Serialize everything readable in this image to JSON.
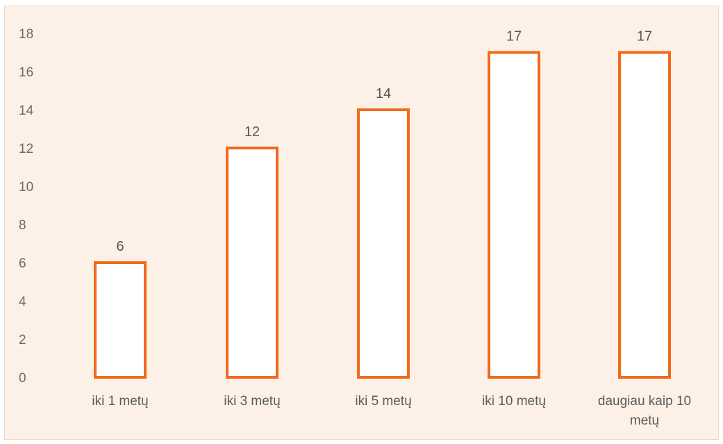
{
  "colors": {
    "background": "#fdf1e7",
    "bar_stroke": "#f26a1b",
    "bar_fill": "#ffffff",
    "text": "#5a5a5a"
  },
  "chart_data": {
    "type": "bar",
    "title": "",
    "xlabel": "",
    "ylabel": "",
    "categories": [
      [
        "iki 1 metų"
      ],
      [
        "iki 3 metų"
      ],
      [
        "iki 5 metų"
      ],
      [
        "iki 10 metų"
      ],
      [
        "daugiau kaip 10",
        "metų"
      ]
    ],
    "values": [
      6,
      12,
      14,
      17,
      17
    ],
    "data_labels": [
      "6",
      "12",
      "14",
      "17",
      "17"
    ],
    "ylim": [
      0,
      18
    ],
    "yticks": [
      0,
      2,
      4,
      6,
      8,
      10,
      12,
      14,
      16,
      18
    ],
    "grid": false,
    "legend": "none"
  }
}
